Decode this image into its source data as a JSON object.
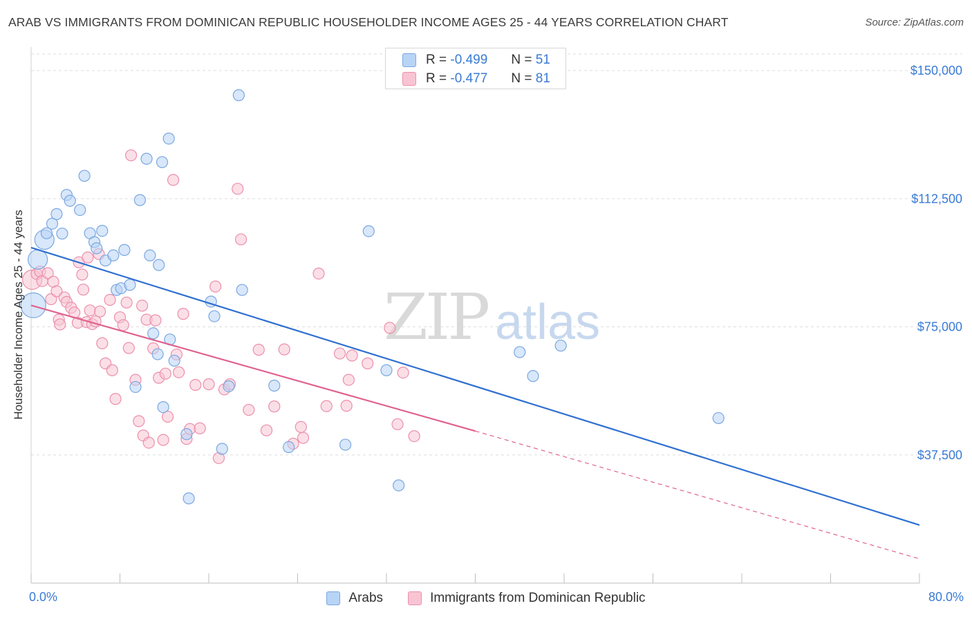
{
  "header": {
    "title": "ARAB VS IMMIGRANTS FROM DOMINICAN REPUBLIC HOUSEHOLDER INCOME AGES 25 - 44 YEARS CORRELATION CHART",
    "source": "Source: ZipAtlas.com"
  },
  "legend": {
    "r_label": "R =",
    "n_label": "N =",
    "arabs_r": "-0.499",
    "arabs_n": "51",
    "dom_r": "-0.477",
    "dom_n": "81"
  },
  "bottom_legend": {
    "arabs": "Arabs",
    "dominican": "Immigrants from Dominican Republic"
  },
  "watermark": {
    "zip": "ZIP",
    "atlas": "atlas"
  },
  "colors": {
    "arabs_fill": "#b8d4f5",
    "arabs_stroke": "#7aa7e0",
    "arabs_line": "#2e6fd0",
    "dom_fill": "#f8c4d4",
    "dom_stroke": "#ec8fac",
    "dom_line": "#e06290",
    "axis_text": "#3a7bd5",
    "grid": "#dedede"
  },
  "chart_data": {
    "type": "scatter",
    "title": "ARAB VS IMMIGRANTS FROM DOMINICAN REPUBLIC HOUSEHOLDER INCOME AGES 25 - 44 YEARS CORRELATION CHART",
    "xlabel": "",
    "ylabel": "Householder Income Ages 25 - 44 years",
    "xlim": [
      0,
      80
    ],
    "ylim": [
      0,
      157500
    ],
    "x_tick_labels": [
      "0.0%",
      "80.0%"
    ],
    "y_ticks": [
      37500,
      75000,
      112500,
      150000
    ],
    "y_tick_labels": [
      "$37,500",
      "$75,000",
      "$112,500",
      "$150,000"
    ],
    "legend_position": "top-center",
    "series": [
      {
        "name": "Arabs",
        "r": -0.499,
        "n": 51,
        "trend": {
          "x": [
            0,
            80
          ],
          "y": [
            98200,
            17000
          ],
          "dashed_from": null
        },
        "points": [
          {
            "x": 0.2,
            "y": 81300,
            "s": "xl"
          },
          {
            "x": 0.6,
            "y": 94700,
            "s": "l"
          },
          {
            "x": 1.2,
            "y": 100500,
            "s": "l"
          },
          {
            "x": 1.4,
            "y": 102400,
            "s": "m"
          },
          {
            "x": 1.9,
            "y": 105200,
            "s": "m"
          },
          {
            "x": 2.3,
            "y": 108000,
            "s": "m"
          },
          {
            "x": 2.8,
            "y": 102300,
            "s": "m"
          },
          {
            "x": 3.2,
            "y": 113600,
            "s": "m"
          },
          {
            "x": 3.5,
            "y": 111900,
            "s": "m"
          },
          {
            "x": 4.4,
            "y": 109200,
            "s": "m"
          },
          {
            "x": 4.8,
            "y": 119200,
            "s": "m"
          },
          {
            "x": 5.3,
            "y": 102400,
            "s": "m"
          },
          {
            "x": 5.7,
            "y": 99800,
            "s": "m"
          },
          {
            "x": 5.9,
            "y": 98000,
            "s": "m"
          },
          {
            "x": 6.4,
            "y": 103100,
            "s": "m"
          },
          {
            "x": 6.7,
            "y": 94400,
            "s": "m"
          },
          {
            "x": 7.4,
            "y": 95900,
            "s": "m"
          },
          {
            "x": 8.4,
            "y": 97500,
            "s": "m"
          },
          {
            "x": 7.7,
            "y": 85800,
            "s": "m"
          },
          {
            "x": 8.1,
            "y": 86300,
            "s": "m"
          },
          {
            "x": 8.9,
            "y": 87300,
            "s": "m"
          },
          {
            "x": 10.4,
            "y": 124200,
            "s": "m"
          },
          {
            "x": 11.8,
            "y": 123200,
            "s": "m"
          },
          {
            "x": 9.8,
            "y": 112100,
            "s": "m"
          },
          {
            "x": 10.7,
            "y": 95900,
            "s": "m"
          },
          {
            "x": 11.5,
            "y": 93100,
            "s": "m"
          },
          {
            "x": 12.4,
            "y": 130100,
            "s": "m"
          },
          {
            "x": 11.0,
            "y": 73100,
            "s": "m"
          },
          {
            "x": 11.4,
            "y": 67000,
            "s": "m"
          },
          {
            "x": 12.5,
            "y": 71300,
            "s": "m"
          },
          {
            "x": 12.9,
            "y": 65100,
            "s": "m"
          },
          {
            "x": 9.4,
            "y": 57400,
            "s": "m"
          },
          {
            "x": 11.9,
            "y": 51500,
            "s": "m"
          },
          {
            "x": 14.0,
            "y": 43600,
            "s": "m"
          },
          {
            "x": 14.2,
            "y": 24800,
            "s": "m"
          },
          {
            "x": 18.7,
            "y": 142800,
            "s": "m"
          },
          {
            "x": 16.2,
            "y": 82400,
            "s": "m"
          },
          {
            "x": 16.5,
            "y": 78100,
            "s": "m"
          },
          {
            "x": 19.0,
            "y": 85800,
            "s": "m"
          },
          {
            "x": 17.2,
            "y": 39300,
            "s": "m"
          },
          {
            "x": 17.8,
            "y": 57600,
            "s": "m"
          },
          {
            "x": 21.9,
            "y": 57800,
            "s": "m"
          },
          {
            "x": 23.2,
            "y": 39800,
            "s": "m"
          },
          {
            "x": 28.3,
            "y": 40500,
            "s": "m"
          },
          {
            "x": 30.4,
            "y": 103000,
            "s": "m"
          },
          {
            "x": 32.0,
            "y": 62300,
            "s": "m"
          },
          {
            "x": 33.1,
            "y": 28600,
            "s": "m"
          },
          {
            "x": 44.0,
            "y": 67600,
            "s": "m"
          },
          {
            "x": 45.2,
            "y": 60600,
            "s": "m"
          },
          {
            "x": 47.7,
            "y": 69500,
            "s": "m"
          },
          {
            "x": 61.9,
            "y": 48300,
            "s": "m"
          }
        ]
      },
      {
        "name": "Immigrants from Dominican Republic",
        "r": -0.477,
        "n": 81,
        "trend": {
          "x": [
            0,
            40,
            80
          ],
          "y": [
            81300,
            44500,
            7100
          ],
          "dashed_from": 40
        },
        "points": [
          {
            "x": 0.1,
            "y": 88800,
            "s": "l"
          },
          {
            "x": 0.5,
            "y": 90500,
            "s": "m"
          },
          {
            "x": 0.8,
            "y": 91200,
            "s": "m"
          },
          {
            "x": 1.0,
            "y": 88400,
            "s": "m"
          },
          {
            "x": 1.5,
            "y": 90700,
            "s": "m"
          },
          {
            "x": 1.8,
            "y": 83100,
            "s": "m"
          },
          {
            "x": 2.0,
            "y": 88200,
            "s": "m"
          },
          {
            "x": 2.3,
            "y": 85400,
            "s": "m"
          },
          {
            "x": 2.5,
            "y": 77100,
            "s": "m"
          },
          {
            "x": 2.6,
            "y": 75700,
            "s": "m"
          },
          {
            "x": 3.0,
            "y": 83600,
            "s": "m"
          },
          {
            "x": 3.2,
            "y": 82300,
            "s": "m"
          },
          {
            "x": 3.6,
            "y": 80600,
            "s": "m"
          },
          {
            "x": 3.9,
            "y": 79200,
            "s": "m"
          },
          {
            "x": 4.2,
            "y": 76200,
            "s": "m"
          },
          {
            "x": 4.3,
            "y": 93900,
            "s": "m"
          },
          {
            "x": 4.6,
            "y": 90300,
            "s": "m"
          },
          {
            "x": 4.7,
            "y": 85900,
            "s": "m"
          },
          {
            "x": 5.0,
            "y": 76400,
            "s": "m"
          },
          {
            "x": 5.1,
            "y": 95300,
            "s": "m"
          },
          {
            "x": 5.3,
            "y": 79800,
            "s": "m"
          },
          {
            "x": 5.5,
            "y": 75800,
            "s": "m"
          },
          {
            "x": 5.8,
            "y": 76600,
            "s": "m"
          },
          {
            "x": 6.2,
            "y": 79500,
            "s": "m"
          },
          {
            "x": 6.1,
            "y": 96300,
            "s": "m"
          },
          {
            "x": 6.4,
            "y": 70200,
            "s": "m"
          },
          {
            "x": 6.7,
            "y": 64300,
            "s": "m"
          },
          {
            "x": 7.1,
            "y": 82900,
            "s": "m"
          },
          {
            "x": 7.3,
            "y": 62300,
            "s": "m"
          },
          {
            "x": 7.6,
            "y": 53900,
            "s": "m"
          },
          {
            "x": 8.0,
            "y": 77800,
            "s": "m"
          },
          {
            "x": 8.3,
            "y": 75500,
            "s": "m"
          },
          {
            "x": 8.6,
            "y": 82100,
            "s": "m"
          },
          {
            "x": 8.8,
            "y": 68800,
            "s": "m"
          },
          {
            "x": 9.0,
            "y": 125200,
            "s": "m"
          },
          {
            "x": 9.4,
            "y": 59500,
            "s": "m"
          },
          {
            "x": 9.7,
            "y": 47400,
            "s": "m"
          },
          {
            "x": 10.0,
            "y": 81200,
            "s": "m"
          },
          {
            "x": 10.1,
            "y": 43200,
            "s": "m"
          },
          {
            "x": 10.4,
            "y": 77100,
            "s": "m"
          },
          {
            "x": 10.6,
            "y": 41100,
            "s": "m"
          },
          {
            "x": 11.0,
            "y": 68700,
            "s": "m"
          },
          {
            "x": 11.2,
            "y": 76900,
            "s": "m"
          },
          {
            "x": 11.5,
            "y": 60100,
            "s": "m"
          },
          {
            "x": 11.9,
            "y": 41900,
            "s": "m"
          },
          {
            "x": 12.1,
            "y": 61300,
            "s": "m"
          },
          {
            "x": 12.3,
            "y": 48700,
            "s": "m"
          },
          {
            "x": 12.8,
            "y": 118000,
            "s": "m"
          },
          {
            "x": 13.1,
            "y": 66900,
            "s": "m"
          },
          {
            "x": 13.3,
            "y": 61700,
            "s": "m"
          },
          {
            "x": 13.7,
            "y": 78800,
            "s": "m"
          },
          {
            "x": 14.0,
            "y": 42200,
            "s": "m"
          },
          {
            "x": 14.3,
            "y": 45100,
            "s": "m"
          },
          {
            "x": 14.8,
            "y": 58000,
            "s": "m"
          },
          {
            "x": 15.2,
            "y": 45300,
            "s": "m"
          },
          {
            "x": 16.0,
            "y": 58200,
            "s": "m"
          },
          {
            "x": 16.6,
            "y": 86800,
            "s": "m"
          },
          {
            "x": 16.9,
            "y": 36600,
            "s": "m"
          },
          {
            "x": 17.4,
            "y": 56700,
            "s": "m"
          },
          {
            "x": 17.9,
            "y": 58200,
            "s": "m"
          },
          {
            "x": 18.6,
            "y": 115400,
            "s": "m"
          },
          {
            "x": 18.9,
            "y": 100600,
            "s": "m"
          },
          {
            "x": 19.6,
            "y": 50700,
            "s": "m"
          },
          {
            "x": 20.5,
            "y": 68300,
            "s": "m"
          },
          {
            "x": 21.2,
            "y": 44700,
            "s": "m"
          },
          {
            "x": 21.9,
            "y": 51700,
            "s": "m"
          },
          {
            "x": 22.8,
            "y": 68400,
            "s": "m"
          },
          {
            "x": 23.6,
            "y": 40800,
            "s": "m"
          },
          {
            "x": 24.3,
            "y": 45700,
            "s": "m"
          },
          {
            "x": 24.5,
            "y": 42500,
            "s": "m"
          },
          {
            "x": 25.9,
            "y": 90600,
            "s": "m"
          },
          {
            "x": 26.6,
            "y": 51800,
            "s": "m"
          },
          {
            "x": 27.8,
            "y": 67200,
            "s": "m"
          },
          {
            "x": 28.4,
            "y": 51900,
            "s": "m"
          },
          {
            "x": 28.9,
            "y": 66600,
            "s": "m"
          },
          {
            "x": 28.6,
            "y": 59500,
            "s": "m"
          },
          {
            "x": 30.3,
            "y": 64300,
            "s": "m"
          },
          {
            "x": 32.3,
            "y": 74700,
            "s": "m"
          },
          {
            "x": 33.0,
            "y": 46500,
            "s": "m"
          },
          {
            "x": 33.5,
            "y": 61600,
            "s": "m"
          },
          {
            "x": 34.5,
            "y": 43000,
            "s": "m"
          }
        ]
      }
    ]
  }
}
